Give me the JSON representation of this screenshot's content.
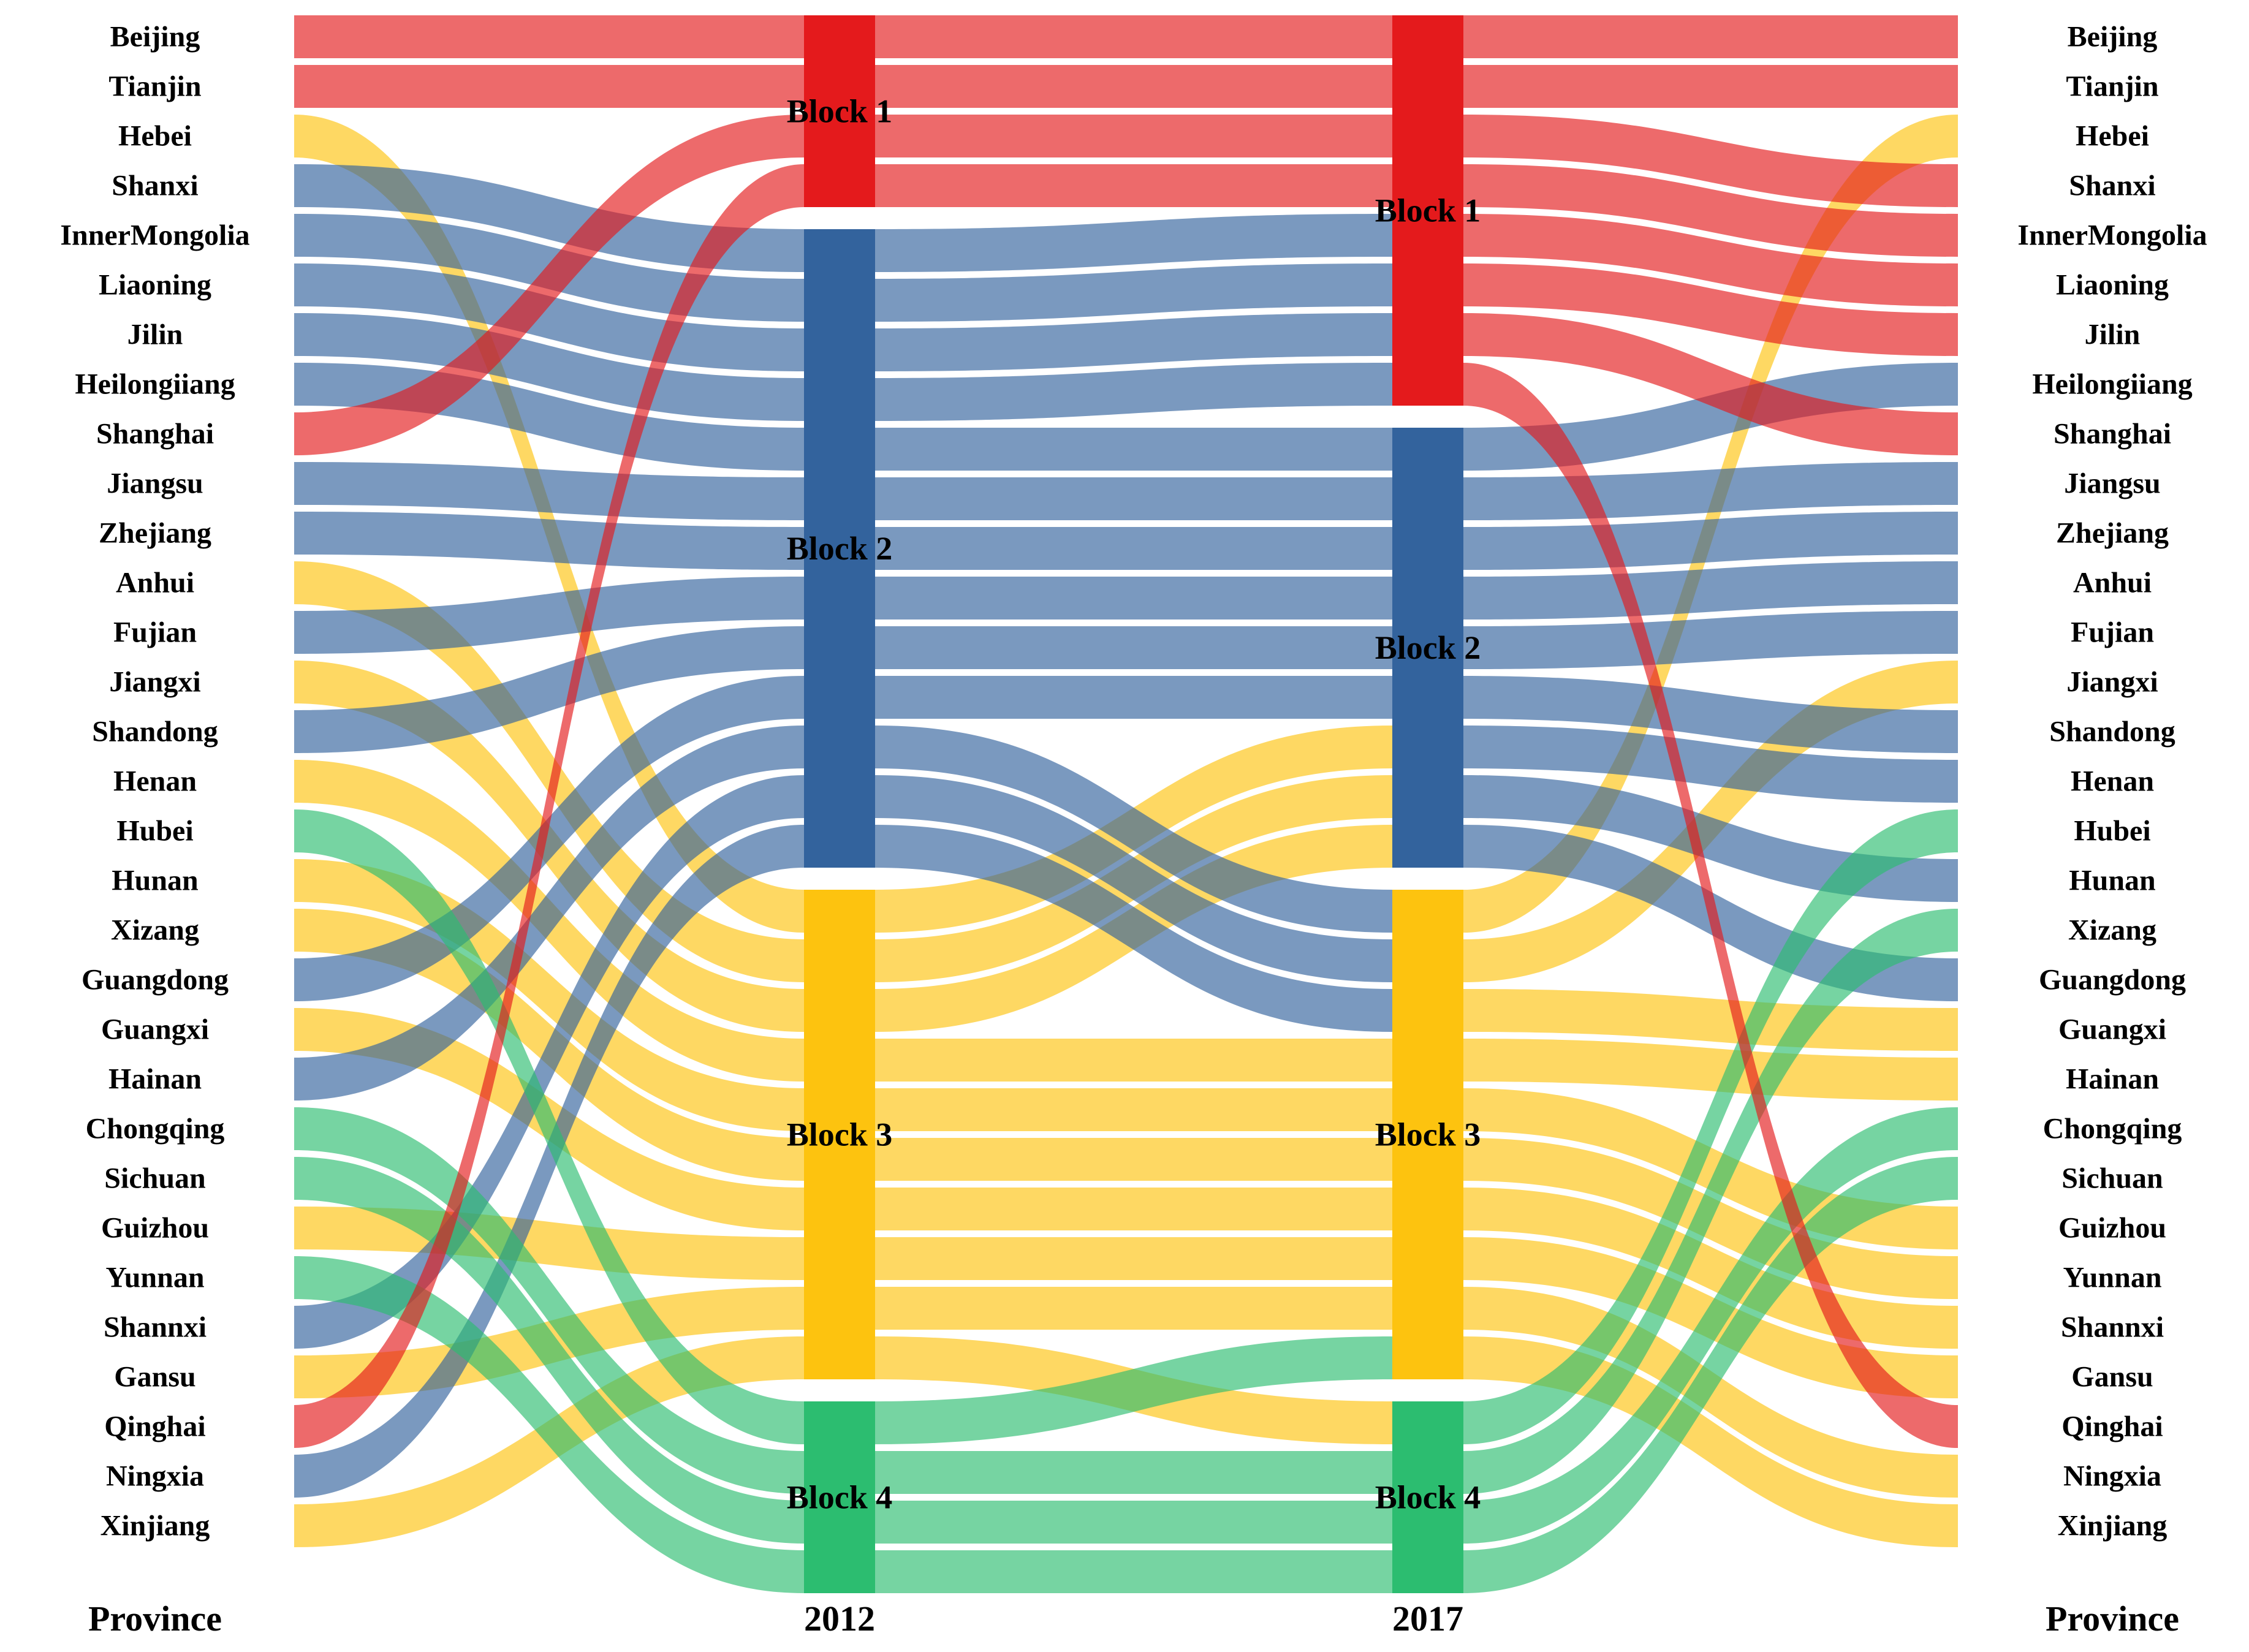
{
  "chart_data": {
    "type": "sankey",
    "title": "",
    "columns": [
      "Province",
      "2012",
      "2017",
      "Province"
    ],
    "legend": "none",
    "flow_opacity": 0.65,
    "background": "#ffffff",
    "blocks": [
      {
        "id": "Block 1",
        "color": "#e41a1c"
      },
      {
        "id": "Block 2",
        "color": "#33639d"
      },
      {
        "id": "Block 3",
        "color": "#fdc30f"
      },
      {
        "id": "Block 4",
        "color": "#2cbd70"
      }
    ],
    "assignments": [
      {
        "province": "Beijing",
        "block_2012": "Block 1",
        "block_2017": "Block 1"
      },
      {
        "province": "Tianjin",
        "block_2012": "Block 1",
        "block_2017": "Block 1"
      },
      {
        "province": "Hebei",
        "block_2012": "Block 3",
        "block_2017": "Block 3"
      },
      {
        "province": "Shanxi",
        "block_2012": "Block 2",
        "block_2017": "Block 1"
      },
      {
        "province": "InnerMongolia",
        "block_2012": "Block 2",
        "block_2017": "Block 1"
      },
      {
        "province": "Liaoning",
        "block_2012": "Block 2",
        "block_2017": "Block 1"
      },
      {
        "province": "Jilin",
        "block_2012": "Block 2",
        "block_2017": "Block 1"
      },
      {
        "province": "Heilongiiang",
        "block_2012": "Block 2",
        "block_2017": "Block 2"
      },
      {
        "province": "Shanghai",
        "block_2012": "Block 1",
        "block_2017": "Block 1"
      },
      {
        "province": "Jiangsu",
        "block_2012": "Block 2",
        "block_2017": "Block 2"
      },
      {
        "province": "Zhejiang",
        "block_2012": "Block 2",
        "block_2017": "Block 2"
      },
      {
        "province": "Anhui",
        "block_2012": "Block 3",
        "block_2017": "Block 2"
      },
      {
        "province": "Fujian",
        "block_2012": "Block 2",
        "block_2017": "Block 2"
      },
      {
        "province": "Jiangxi",
        "block_2012": "Block 3",
        "block_2017": "Block 3"
      },
      {
        "province": "Shandong",
        "block_2012": "Block 2",
        "block_2017": "Block 2"
      },
      {
        "province": "Henan",
        "block_2012": "Block 3",
        "block_2017": "Block 2"
      },
      {
        "province": "Hubei",
        "block_2012": "Block 4",
        "block_2017": "Block 4"
      },
      {
        "province": "Hunan",
        "block_2012": "Block 3",
        "block_2017": "Block 2"
      },
      {
        "province": "Xizang",
        "block_2012": "Block 3",
        "block_2017": "Block 4"
      },
      {
        "province": "Guangdong",
        "block_2012": "Block 2",
        "block_2017": "Block 2"
      },
      {
        "province": "Guangxi",
        "block_2012": "Block 3",
        "block_2017": "Block 3"
      },
      {
        "province": "Hainan",
        "block_2012": "Block 2",
        "block_2017": "Block 3"
      },
      {
        "province": "Chongqing",
        "block_2012": "Block 4",
        "block_2017": "Block 4"
      },
      {
        "province": "Sichuan",
        "block_2012": "Block 4",
        "block_2017": "Block 4"
      },
      {
        "province": "Guizhou",
        "block_2012": "Block 3",
        "block_2017": "Block 3"
      },
      {
        "province": "Yunnan",
        "block_2012": "Block 4",
        "block_2017": "Block 3"
      },
      {
        "province": "Shannxi",
        "block_2012": "Block 2",
        "block_2017": "Block 3"
      },
      {
        "province": "Gansu",
        "block_2012": "Block 3",
        "block_2017": "Block 3"
      },
      {
        "province": "Qinghai",
        "block_2012": "Block 1",
        "block_2017": "Block 1"
      },
      {
        "province": "Ningxia",
        "block_2012": "Block 2",
        "block_2017": "Block 3"
      },
      {
        "province": "Xinjiang",
        "block_2012": "Block 3",
        "block_2017": "Block 3"
      }
    ]
  }
}
